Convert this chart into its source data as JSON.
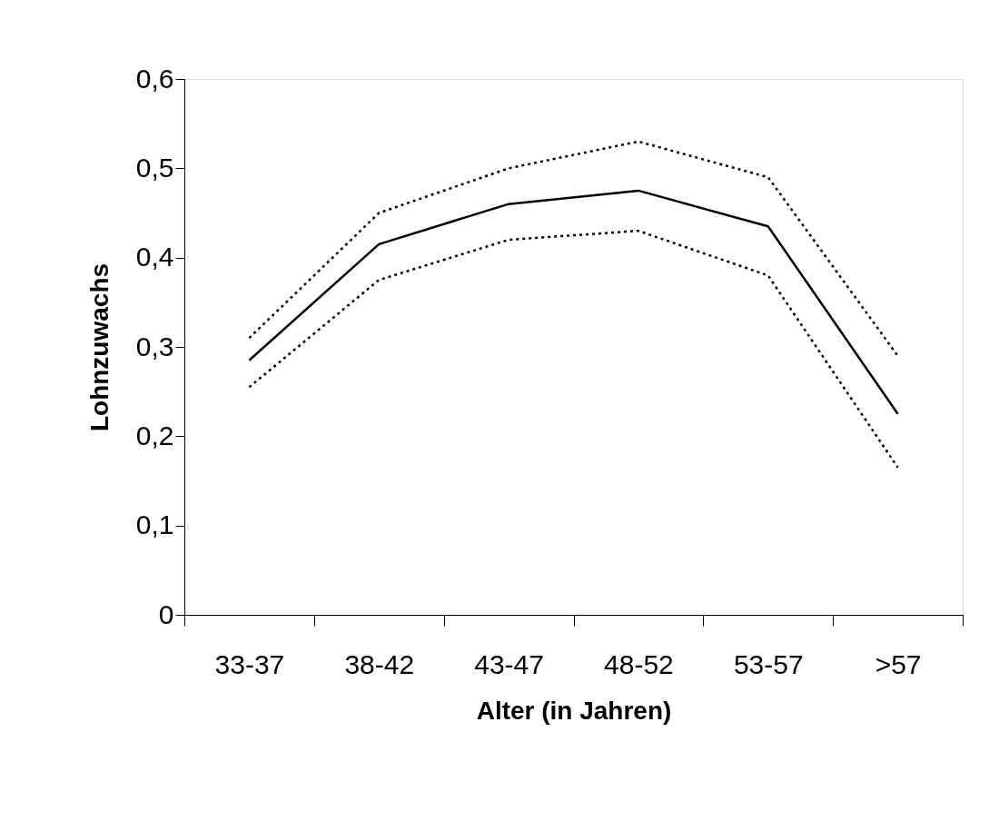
{
  "chart_data": {
    "type": "line",
    "xlabel": "Alter (in Jahren)",
    "ylabel": "Lohnzuwachs",
    "categories": [
      "33-37",
      "38-42",
      "43-47",
      "48-52",
      "53-57",
      ">57"
    ],
    "series": [
      {
        "color": "#000000",
        "line_style": "solid",
        "values": [
          0.285,
          0.415,
          0.46,
          0.475,
          0.435,
          0.225
        ]
      },
      {
        "color": "#000000",
        "line_style": "dotted",
        "values": [
          0.31,
          0.45,
          0.5,
          0.53,
          0.49,
          0.29
        ]
      },
      {
        "color": "#000000",
        "line_style": "dotted",
        "values": [
          0.255,
          0.375,
          0.42,
          0.43,
          0.38,
          0.165
        ]
      }
    ],
    "ylim": [
      0,
      0.6
    ],
    "yticks": [
      {
        "value": 0,
        "label": "0"
      },
      {
        "value": 0.1,
        "label": "0,1"
      },
      {
        "value": 0.2,
        "label": "0,2"
      },
      {
        "value": 0.3,
        "label": "0,3"
      },
      {
        "value": 0.4,
        "label": "0,4"
      },
      {
        "value": 0.5,
        "label": "0,5"
      },
      {
        "value": 0.6,
        "label": "0,6"
      }
    ],
    "grid": false,
    "marker": "none"
  }
}
